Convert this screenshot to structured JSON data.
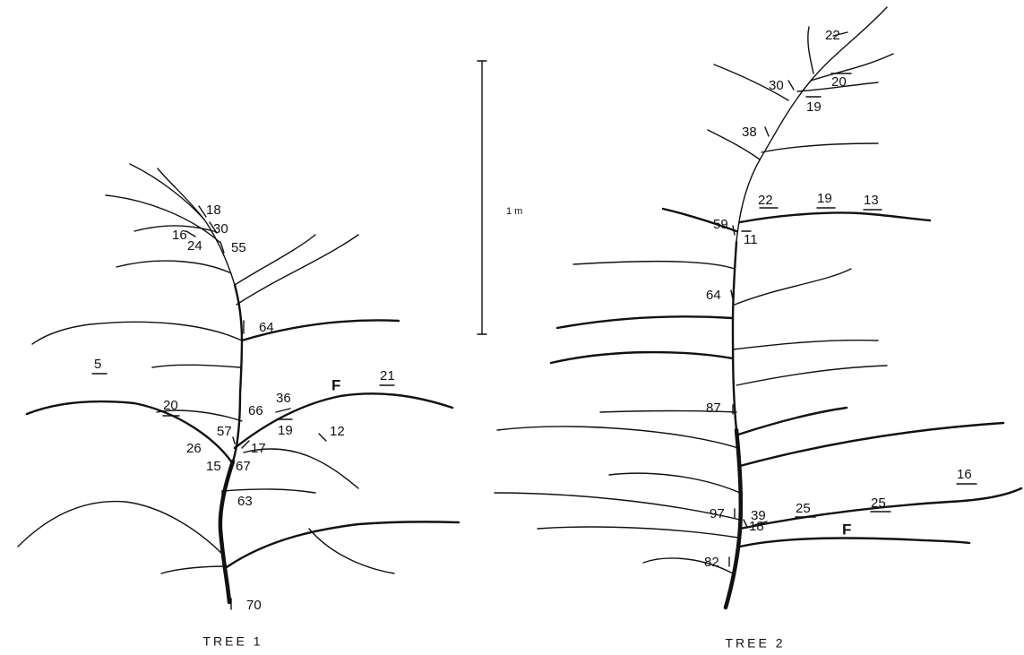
{
  "scale_bar": {
    "label": "1 m"
  },
  "trees": [
    {
      "title": "TREE 1",
      "labels": [
        "18",
        "30",
        "16",
        "24",
        "55",
        "64",
        "5",
        "20",
        "66",
        "36",
        "F",
        "21",
        "57",
        "19",
        "12",
        "26",
        "17",
        "15",
        "67",
        "63",
        "70"
      ]
    },
    {
      "title": "TREE 2",
      "labels": [
        "22",
        "30",
        "20",
        "19",
        "38",
        "59",
        "22",
        "19",
        "13",
        "11",
        "64",
        "87",
        "39",
        "25",
        "25",
        "16",
        "97",
        "18",
        "F",
        "82"
      ]
    }
  ]
}
